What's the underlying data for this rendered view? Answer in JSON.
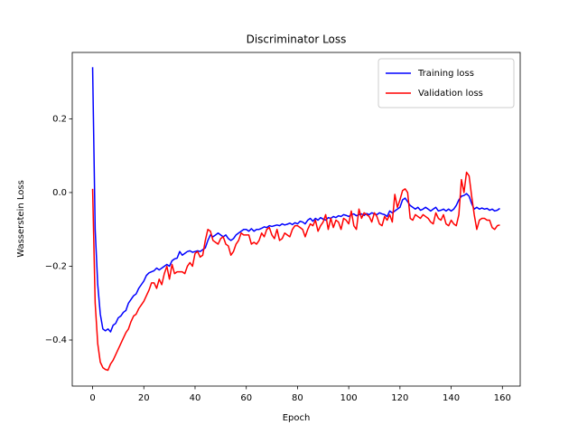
{
  "chart_data": {
    "type": "line",
    "title": "Discriminator Loss",
    "x_label": "Epoch",
    "y_label": "Wasserstein Loss",
    "x": [
      0,
      1,
      2,
      3,
      4,
      5,
      6,
      7,
      8,
      9,
      10,
      11,
      12,
      13,
      14,
      15,
      16,
      17,
      18,
      19,
      20,
      21,
      22,
      23,
      24,
      25,
      26,
      27,
      28,
      29,
      30,
      31,
      32,
      33,
      34,
      35,
      36,
      37,
      38,
      39,
      40,
      41,
      42,
      43,
      44,
      45,
      46,
      47,
      48,
      49,
      50,
      51,
      52,
      53,
      54,
      55,
      56,
      57,
      58,
      59,
      60,
      61,
      62,
      63,
      64,
      65,
      66,
      67,
      68,
      69,
      70,
      71,
      72,
      73,
      74,
      75,
      76,
      77,
      78,
      79,
      80,
      81,
      82,
      83,
      84,
      85,
      86,
      87,
      88,
      89,
      90,
      91,
      92,
      93,
      94,
      95,
      96,
      97,
      98,
      99,
      100,
      101,
      102,
      103,
      104,
      105,
      106,
      107,
      108,
      109,
      110,
      111,
      112,
      113,
      114,
      115,
      116,
      117,
      118,
      119,
      120,
      121,
      122,
      123,
      124,
      125,
      126,
      127,
      128,
      129,
      130,
      131,
      132,
      133,
      134,
      135,
      136,
      137,
      138,
      139,
      140,
      141,
      142,
      143,
      144,
      145,
      146,
      147,
      148,
      149,
      150,
      151,
      152,
      153,
      154,
      155,
      156,
      157,
      158,
      159
    ],
    "series": [
      {
        "name": "Training loss",
        "color": "#0000ff",
        "values": [
          0.34,
          -0.1,
          -0.25,
          -0.33,
          -0.37,
          -0.375,
          -0.37,
          -0.378,
          -0.36,
          -0.355,
          -0.34,
          -0.335,
          -0.325,
          -0.32,
          -0.3,
          -0.29,
          -0.28,
          -0.275,
          -0.26,
          -0.25,
          -0.24,
          -0.225,
          -0.218,
          -0.215,
          -0.212,
          -0.205,
          -0.21,
          -0.205,
          -0.2,
          -0.195,
          -0.2,
          -0.185,
          -0.18,
          -0.178,
          -0.16,
          -0.17,
          -0.165,
          -0.16,
          -0.158,
          -0.162,
          -0.16,
          -0.158,
          -0.16,
          -0.155,
          -0.15,
          -0.13,
          -0.115,
          -0.12,
          -0.115,
          -0.11,
          -0.115,
          -0.12,
          -0.115,
          -0.125,
          -0.13,
          -0.125,
          -0.115,
          -0.11,
          -0.105,
          -0.1,
          -0.1,
          -0.105,
          -0.098,
          -0.105,
          -0.1,
          -0.1,
          -0.097,
          -0.093,
          -0.095,
          -0.09,
          -0.092,
          -0.09,
          -0.088,
          -0.09,
          -0.085,
          -0.088,
          -0.086,
          -0.083,
          -0.087,
          -0.082,
          -0.085,
          -0.078,
          -0.08,
          -0.085,
          -0.075,
          -0.07,
          -0.078,
          -0.07,
          -0.075,
          -0.068,
          -0.072,
          -0.075,
          -0.068,
          -0.07,
          -0.065,
          -0.068,
          -0.063,
          -0.065,
          -0.06,
          -0.062,
          -0.065,
          -0.06,
          -0.058,
          -0.063,
          -0.06,
          -0.058,
          -0.062,
          -0.057,
          -0.06,
          -0.055,
          -0.058,
          -0.06,
          -0.055,
          -0.058,
          -0.06,
          -0.065,
          -0.05,
          -0.055,
          -0.05,
          -0.045,
          -0.04,
          -0.02,
          -0.015,
          -0.025,
          -0.035,
          -0.04,
          -0.045,
          -0.04,
          -0.048,
          -0.045,
          -0.04,
          -0.045,
          -0.05,
          -0.045,
          -0.04,
          -0.05,
          -0.048,
          -0.045,
          -0.05,
          -0.045,
          -0.05,
          -0.045,
          -0.035,
          -0.02,
          -0.01,
          -0.008,
          -0.003,
          -0.01,
          -0.03,
          -0.045,
          -0.04,
          -0.045,
          -0.042,
          -0.045,
          -0.043,
          -0.048,
          -0.045,
          -0.05,
          -0.048,
          -0.043
        ]
      },
      {
        "name": "Validation loss",
        "color": "#ff0000",
        "values": [
          0.01,
          -0.3,
          -0.41,
          -0.46,
          -0.475,
          -0.48,
          -0.482,
          -0.465,
          -0.455,
          -0.44,
          -0.425,
          -0.41,
          -0.395,
          -0.38,
          -0.37,
          -0.35,
          -0.335,
          -0.33,
          -0.315,
          -0.305,
          -0.295,
          -0.28,
          -0.265,
          -0.245,
          -0.245,
          -0.26,
          -0.235,
          -0.25,
          -0.22,
          -0.2,
          -0.235,
          -0.195,
          -0.22,
          -0.215,
          -0.215,
          -0.215,
          -0.22,
          -0.2,
          -0.19,
          -0.2,
          -0.165,
          -0.16,
          -0.175,
          -0.17,
          -0.13,
          -0.1,
          -0.105,
          -0.13,
          -0.135,
          -0.14,
          -0.125,
          -0.12,
          -0.14,
          -0.145,
          -0.17,
          -0.16,
          -0.14,
          -0.13,
          -0.11,
          -0.115,
          -0.115,
          -0.115,
          -0.14,
          -0.135,
          -0.14,
          -0.13,
          -0.11,
          -0.12,
          -0.1,
          -0.095,
          -0.115,
          -0.125,
          -0.1,
          -0.13,
          -0.125,
          -0.11,
          -0.115,
          -0.12,
          -0.1,
          -0.09,
          -0.09,
          -0.095,
          -0.1,
          -0.12,
          -0.1,
          -0.085,
          -0.09,
          -0.075,
          -0.105,
          -0.09,
          -0.08,
          -0.06,
          -0.1,
          -0.07,
          -0.095,
          -0.075,
          -0.08,
          -0.1,
          -0.07,
          -0.075,
          -0.085,
          -0.05,
          -0.09,
          -0.1,
          -0.045,
          -0.07,
          -0.055,
          -0.06,
          -0.065,
          -0.08,
          -0.055,
          -0.065,
          -0.085,
          -0.09,
          -0.065,
          -0.075,
          -0.06,
          -0.08,
          -0.005,
          -0.04,
          -0.02,
          0.005,
          0.01,
          0.0,
          -0.07,
          -0.075,
          -0.06,
          -0.065,
          -0.07,
          -0.06,
          -0.065,
          -0.07,
          -0.08,
          -0.085,
          -0.055,
          -0.07,
          -0.075,
          -0.06,
          -0.085,
          -0.09,
          -0.075,
          -0.085,
          -0.09,
          -0.06,
          0.035,
          0.0,
          0.055,
          0.045,
          -0.01,
          -0.06,
          -0.1,
          -0.075,
          -0.07,
          -0.07,
          -0.075,
          -0.075,
          -0.095,
          -0.1,
          -0.09,
          -0.088
        ]
      }
    ],
    "xlim": [
      -7.95,
      166.95
    ],
    "ylim": [
      -0.525,
      0.38
    ],
    "xticks": [
      0,
      20,
      40,
      60,
      80,
      100,
      120,
      140,
      160
    ],
    "yticks": [
      {
        "value": -0.4,
        "label": "−0.4"
      },
      {
        "value": -0.2,
        "label": "−0.2"
      },
      {
        "value": 0,
        "label": "0.0"
      },
      0.2
    ],
    "legend": "upper right",
    "grid": false
  }
}
